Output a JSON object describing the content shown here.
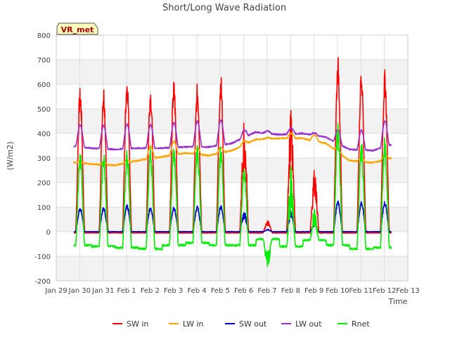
{
  "chart_data": {
    "type": "line",
    "title": "Short/Long Wave Radiation",
    "ylabel": "(W/m2)",
    "xlabel": "Time",
    "badge": "VR_met",
    "xlim": [
      0,
      15
    ],
    "ylim": [
      -200,
      800
    ],
    "yticks": [
      -200,
      -100,
      0,
      100,
      200,
      300,
      400,
      500,
      600,
      700,
      800
    ],
    "xticks": [
      {
        "x": 0,
        "label": "Jan 29"
      },
      {
        "x": 1,
        "label": "Jan 30"
      },
      {
        "x": 2,
        "label": "Jan 31"
      },
      {
        "x": 3,
        "label": "Feb 1"
      },
      {
        "x": 4,
        "label": "Feb 2"
      },
      {
        "x": 5,
        "label": "Feb 3"
      },
      {
        "x": 6,
        "label": "Feb 4"
      },
      {
        "x": 7,
        "label": "Feb 5"
      },
      {
        "x": 8,
        "label": "Feb 6"
      },
      {
        "x": 9,
        "label": "Feb 7"
      },
      {
        "x": 10,
        "label": "Feb 8"
      },
      {
        "x": 11,
        "label": "Feb 9"
      },
      {
        "x": 12,
        "label": "Feb 10"
      },
      {
        "x": 13,
        "label": "Feb 11"
      },
      {
        "x": 14,
        "label": "Feb 12"
      },
      {
        "x": 15,
        "label": "Feb 13"
      }
    ],
    "grid": true,
    "legend_position": "bottom",
    "days": [
      1,
      2,
      3,
      4,
      5,
      6,
      7,
      8,
      9,
      10,
      11,
      12,
      13,
      14
    ],
    "series": [
      {
        "name": "SW in",
        "color": "#ff0000",
        "kind": "sw",
        "peaks": [
          590,
          600,
          640,
          595,
          620,
          605,
          645,
          470,
          45,
          505,
          255,
          715,
          675,
          660
        ],
        "base": [
          -5,
          -5,
          -5,
          -5,
          -5,
          -5,
          -5,
          -5,
          -5,
          -5,
          -5,
          -5,
          -5,
          -5
        ]
      },
      {
        "name": "LW in",
        "color": "#ffa500",
        "kind": "lw",
        "base": [
          285,
          275,
          270,
          290,
          305,
          320,
          310,
          330,
          375,
          380,
          380,
          360,
          290,
          280,
          305
        ],
        "amp": [
          5,
          10,
          10,
          50,
          55,
          25,
          20,
          15,
          5,
          20,
          25,
          15,
          15,
          20
        ]
      },
      {
        "name": "SW out",
        "color": "#0000cd",
        "kind": "sw",
        "peaks": [
          100,
          102,
          113,
          102,
          103,
          105,
          108,
          85,
          10,
          90,
          35,
          130,
          125,
          125
        ],
        "base": [
          0,
          0,
          0,
          0,
          0,
          0,
          0,
          0,
          0,
          0,
          0,
          0,
          0,
          0
        ]
      },
      {
        "name": "LW out",
        "color": "#9932cc",
        "kind": "lw",
        "base": [
          350,
          340,
          335,
          340,
          340,
          345,
          345,
          360,
          405,
          395,
          400,
          385,
          335,
          330,
          360
        ],
        "amp": [
          90,
          95,
          100,
          95,
          100,
          105,
          100,
          30,
          10,
          25,
          10,
          55,
          80,
          105
        ]
      },
      {
        "name": "Rnet",
        "color": "#00ee00",
        "kind": "rnet",
        "peaks": [
          330,
          330,
          345,
          345,
          355,
          365,
          365,
          260,
          -150,
          270,
          95,
          440,
          375,
          385
        ],
        "base": [
          -55,
          -60,
          -65,
          -70,
          -55,
          -45,
          -55,
          -55,
          -30,
          -60,
          -35,
          -55,
          -70,
          -65
        ]
      }
    ]
  }
}
